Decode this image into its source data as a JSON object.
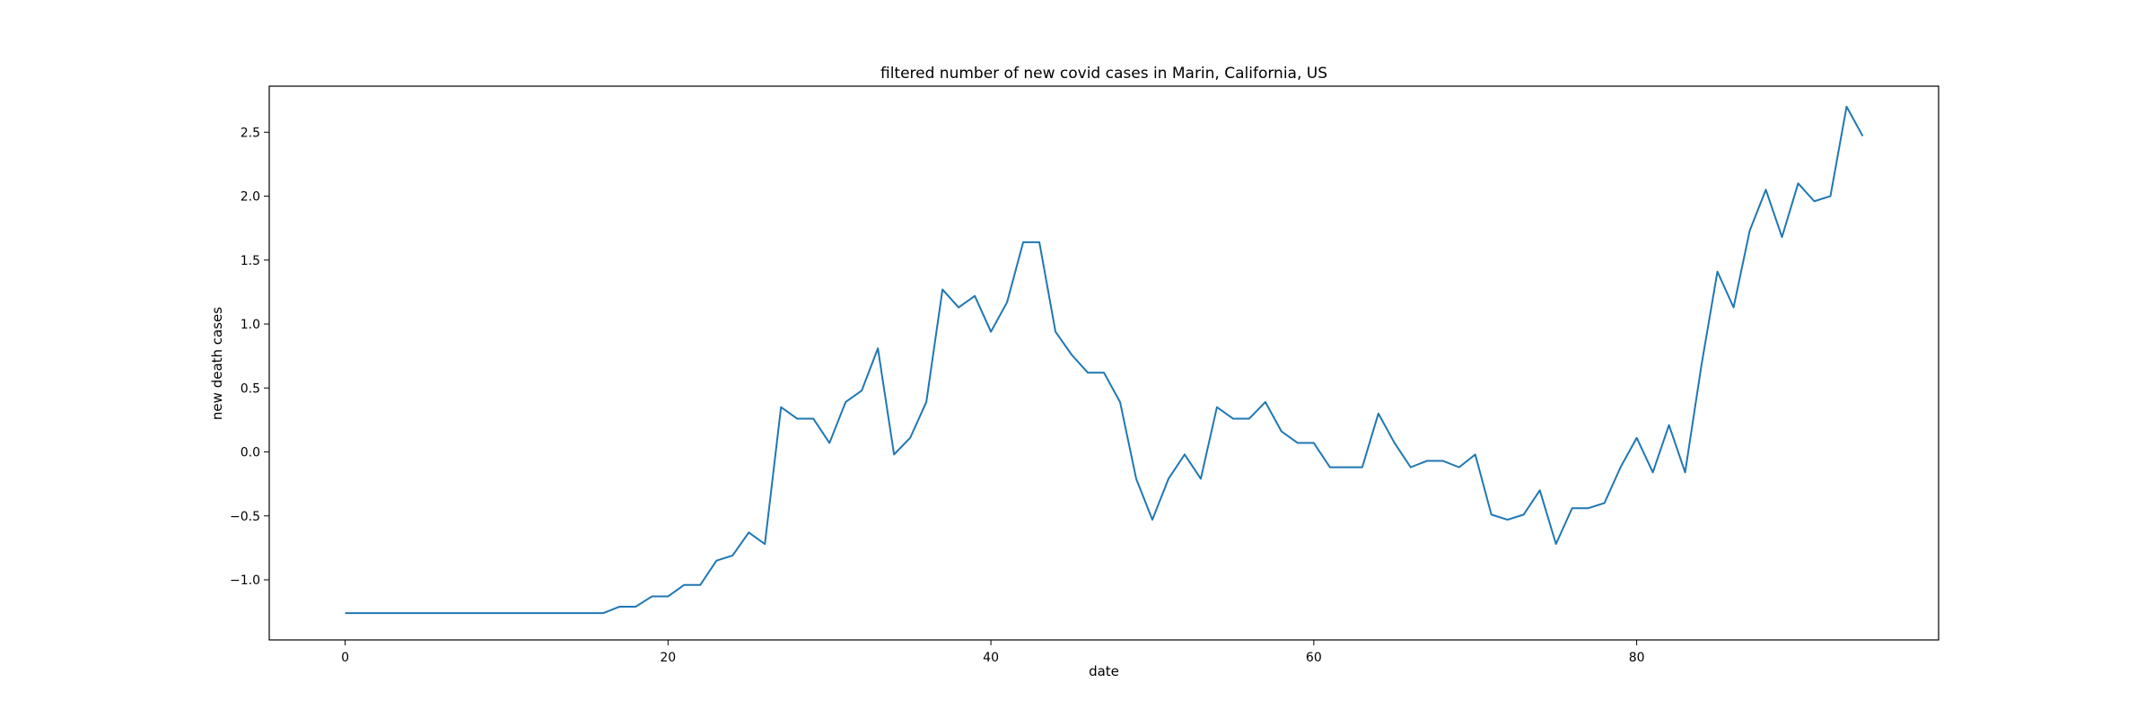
{
  "chart_data": {
    "type": "line",
    "title": "filtered number of new covid cases in Marin, California, US",
    "xlabel": "date",
    "ylabel": "new death cases",
    "xlim": [
      -4.7,
      98.7
    ],
    "ylim": [
      -1.47,
      2.86
    ],
    "xticks": [
      0,
      20,
      40,
      60,
      80
    ],
    "xtick_labels": [
      "0",
      "20",
      "40",
      "60",
      "80"
    ],
    "yticks": [
      -1.0,
      -0.5,
      0.0,
      0.5,
      1.0,
      1.5,
      2.0,
      2.5
    ],
    "ytick_labels": [
      "−1.0",
      "−0.5",
      "0.0",
      "0.5",
      "1.0",
      "1.5",
      "2.0",
      "2.5"
    ],
    "grid": false,
    "line_color": "#1f77b4",
    "series": [
      {
        "values": [
          -1.26,
          -1.26,
          -1.26,
          -1.26,
          -1.26,
          -1.26,
          -1.26,
          -1.26,
          -1.26,
          -1.26,
          -1.26,
          -1.26,
          -1.26,
          -1.26,
          -1.26,
          -1.26,
          -1.26,
          -1.21,
          -1.21,
          -1.13,
          -1.13,
          -1.04,
          -1.04,
          -0.85,
          -0.81,
          -0.63,
          -0.72,
          0.35,
          0.26,
          0.26,
          0.07,
          0.39,
          0.48,
          0.81,
          -0.02,
          0.11,
          0.39,
          1.27,
          1.13,
          1.22,
          0.94,
          1.17,
          1.64,
          1.64,
          0.94,
          0.76,
          0.62,
          0.62,
          0.39,
          -0.21,
          -0.53,
          -0.21,
          -0.02,
          -0.21,
          0.35,
          0.26,
          0.26,
          0.39,
          0.16,
          0.07,
          0.07,
          -0.12,
          -0.12,
          -0.12,
          0.3,
          0.07,
          -0.12,
          -0.07,
          -0.07,
          -0.12,
          -0.02,
          -0.49,
          -0.53,
          -0.49,
          -0.3,
          -0.72,
          -0.44,
          -0.44,
          -0.4,
          -0.12,
          0.11,
          -0.16,
          0.21,
          -0.16,
          0.67,
          1.41,
          1.13,
          1.73,
          2.05,
          1.68,
          2.1,
          1.96,
          2.0,
          2.7,
          2.47
        ]
      }
    ]
  }
}
